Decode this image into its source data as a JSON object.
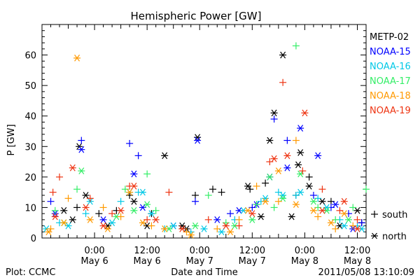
{
  "chart_data": {
    "type": "scatter",
    "title": "Hemispheric Power [GW]",
    "ylabel": "P [GW]",
    "xlabel": "Date and Time",
    "ylim": [
      0,
      70
    ],
    "yticks": [
      0,
      10,
      20,
      30,
      40,
      50,
      60
    ],
    "xlim": [
      "2011-05-05T12:00",
      "2011-05-08T14:00"
    ],
    "xticks": [
      {
        "time": "2011-05-06T00:00",
        "label": "0:00",
        "date": "May 6"
      },
      {
        "time": "2011-05-06T12:00",
        "label": "12:00",
        "date": "May 6"
      },
      {
        "time": "2011-05-07T00:00",
        "label": "0:00",
        "date": "May 7"
      },
      {
        "time": "2011-05-07T12:00",
        "label": "12:00",
        "date": "May 7"
      },
      {
        "time": "2011-05-08T00:00",
        "label": "0:00",
        "date": "May 8"
      },
      {
        "time": "2011-05-08T12:00",
        "label": "12:00",
        "date": "May 8"
      }
    ],
    "marker_legend": [
      {
        "label": "south",
        "symbol": "+"
      },
      {
        "label": "north",
        "symbol": "*"
      }
    ],
    "series": [
      {
        "name": "METP-02",
        "color": "#000000",
        "south": [
          [
            "2011-05-05T20:00",
            10
          ],
          [
            "2011-05-06T01:00",
            8
          ],
          [
            "2011-05-06T05:00",
            9
          ],
          [
            "2011-05-06T08:00",
            14
          ],
          [
            "2011-05-06T13:00",
            8
          ],
          [
            "2011-05-06T23:00",
            14
          ],
          [
            "2011-05-07T03:00",
            16
          ],
          [
            "2011-05-07T05:00",
            15
          ],
          [
            "2011-05-07T11:30",
            16
          ],
          [
            "2011-05-07T15:00",
            18
          ],
          [
            "2011-05-07T22:00",
            14
          ],
          [
            "2011-05-08T01:00",
            20
          ],
          [
            "2011-05-08T06:00",
            12
          ],
          [
            "2011-05-08T13:00",
            5
          ]
        ],
        "north": [
          [
            "2011-05-05T17:00",
            9
          ],
          [
            "2011-05-05T19:00",
            6
          ],
          [
            "2011-05-05T20:30",
            30
          ],
          [
            "2011-05-05T22:00",
            14
          ],
          [
            "2011-05-06T03:00",
            4
          ],
          [
            "2011-05-06T09:00",
            12
          ],
          [
            "2011-05-06T16:00",
            27
          ],
          [
            "2011-05-06T21:00",
            3
          ],
          [
            "2011-05-06T23:30",
            33
          ],
          [
            "2011-05-07T11:00",
            17
          ],
          [
            "2011-05-07T14:00",
            7
          ],
          [
            "2011-05-07T16:00",
            32
          ],
          [
            "2011-05-07T17:00",
            41
          ],
          [
            "2011-05-07T19:00",
            60
          ],
          [
            "2011-05-07T21:00",
            7
          ],
          [
            "2011-05-07T23:00",
            28
          ],
          [
            "2011-05-07T22:30",
            24
          ],
          [
            "2011-05-08T01:00",
            17
          ],
          [
            "2011-05-08T04:00",
            12
          ],
          [
            "2011-05-08T08:00",
            4
          ],
          [
            "2011-05-08T12:00",
            9
          ],
          [
            "2011-05-06T12:00",
            4
          ],
          [
            "2011-05-06T20:00",
            4
          ]
        ]
      },
      {
        "name": "NOAA-15",
        "color": "#0000ff",
        "south": [
          [
            "2011-05-05T14:00",
            12
          ],
          [
            "2011-05-05T21:00",
            32
          ],
          [
            "2011-05-06T08:00",
            31
          ],
          [
            "2011-05-06T10:00",
            27
          ],
          [
            "2011-05-06T23:00",
            12
          ],
          [
            "2011-05-07T07:00",
            8
          ],
          [
            "2011-05-07T12:00",
            10
          ],
          [
            "2011-05-07T17:00",
            39
          ],
          [
            "2011-05-07T20:00",
            32
          ],
          [
            "2011-05-08T02:00",
            14
          ],
          [
            "2011-05-08T06:00",
            10
          ],
          [
            "2011-05-08T10:00",
            8
          ],
          [
            "2011-05-08T13:00",
            5
          ]
        ],
        "north": [
          [
            "2011-05-05T15:00",
            8
          ],
          [
            "2011-05-05T21:00",
            29
          ],
          [
            "2011-05-06T02:00",
            6
          ],
          [
            "2011-05-06T09:00",
            21
          ],
          [
            "2011-05-06T11:00",
            10
          ],
          [
            "2011-05-06T18:00",
            4
          ],
          [
            "2011-05-06T23:30",
            32
          ],
          [
            "2011-05-07T04:00",
            6
          ],
          [
            "2011-05-07T09:00",
            9
          ],
          [
            "2011-05-07T13:00",
            11
          ],
          [
            "2011-05-07T16:00",
            20
          ],
          [
            "2011-05-07T20:00",
            23
          ],
          [
            "2011-05-07T23:00",
            36
          ],
          [
            "2011-05-08T03:00",
            27
          ],
          [
            "2011-05-08T07:00",
            11
          ],
          [
            "2011-05-08T11:00",
            3
          ]
        ]
      },
      {
        "name": "NOAA-16",
        "color": "#00c8e6",
        "south": [
          [
            "2011-05-05T16:00",
            5
          ],
          [
            "2011-05-05T22:00",
            8
          ],
          [
            "2011-05-06T06:00",
            12
          ],
          [
            "2011-05-06T10:00",
            15
          ],
          [
            "2011-05-06T16:00",
            3
          ],
          [
            "2011-05-06T22:00",
            2
          ],
          [
            "2011-05-07T08:00",
            6
          ],
          [
            "2011-05-07T14:00",
            12
          ],
          [
            "2011-05-07T18:00",
            15
          ],
          [
            "2011-05-07T22:00",
            14
          ],
          [
            "2011-05-08T03:00",
            13
          ],
          [
            "2011-05-08T08:00",
            6
          ],
          [
            "2011-05-08T12:00",
            4
          ]
        ],
        "north": [
          [
            "2011-05-05T13:00",
            3
          ],
          [
            "2011-05-05T18:00",
            4
          ],
          [
            "2011-05-05T23:00",
            12
          ],
          [
            "2011-05-06T04:00",
            5
          ],
          [
            "2011-05-06T08:00",
            15
          ],
          [
            "2011-05-06T11:00",
            15
          ],
          [
            "2011-05-06T13:00",
            8
          ],
          [
            "2011-05-06T18:00",
            4
          ],
          [
            "2011-05-07T01:00",
            3
          ],
          [
            "2011-05-07T05:00",
            2
          ],
          [
            "2011-05-07T10:00",
            9
          ],
          [
            "2011-05-07T15:00",
            13
          ],
          [
            "2011-05-07T19:00",
            14
          ],
          [
            "2011-05-07T23:00",
            15
          ],
          [
            "2011-05-08T05:00",
            10
          ],
          [
            "2011-05-08T09:00",
            4
          ],
          [
            "2011-05-08T13:00",
            3
          ]
        ]
      },
      {
        "name": "NOAA-17",
        "color": "#33ee66",
        "south": [
          [
            "2011-05-05T15:00",
            9
          ],
          [
            "2011-05-05T20:00",
            16
          ],
          [
            "2011-05-06T07:00",
            16
          ],
          [
            "2011-05-06T12:00",
            21
          ],
          [
            "2011-05-06T14:00",
            9
          ],
          [
            "2011-05-07T02:00",
            14
          ],
          [
            "2011-05-07T06:00",
            5
          ],
          [
            "2011-05-07T13:00",
            11
          ],
          [
            "2011-05-07T17:00",
            10
          ],
          [
            "2011-05-07T22:00",
            63
          ],
          [
            "2011-05-08T03:00",
            10
          ],
          [
            "2011-05-08T07:00",
            6
          ],
          [
            "2011-05-08T11:00",
            10
          ],
          [
            "2011-05-08T14:00",
            16
          ]
        ],
        "north": [
          [
            "2011-05-05T17:00",
            5
          ],
          [
            "2011-05-05T21:00",
            22
          ],
          [
            "2011-05-06T05:00",
            7
          ],
          [
            "2011-05-06T09:00",
            9
          ],
          [
            "2011-05-06T12:00",
            11
          ],
          [
            "2011-05-06T17:00",
            3
          ],
          [
            "2011-05-06T23:00",
            4
          ],
          [
            "2011-05-07T08:00",
            4
          ],
          [
            "2011-05-07T12:00",
            6
          ],
          [
            "2011-05-07T16:00",
            20
          ],
          [
            "2011-05-07T19:00",
            13
          ],
          [
            "2011-05-07T23:00",
            21
          ],
          [
            "2011-05-08T02:00",
            12
          ],
          [
            "2011-05-08T05:00",
            9
          ],
          [
            "2011-05-08T10:00",
            6
          ]
        ]
      },
      {
        "name": "NOAA-18",
        "color": "#ff9900",
        "south": [
          [
            "2011-05-05T14:00",
            3
          ],
          [
            "2011-05-05T18:00",
            13
          ],
          [
            "2011-05-06T02:00",
            10
          ],
          [
            "2011-05-06T06:00",
            7
          ],
          [
            "2011-05-06T13:00",
            4
          ],
          [
            "2011-05-06T21:00",
            2
          ],
          [
            "2011-05-07T04:00",
            3
          ],
          [
            "2011-05-07T09:00",
            6
          ],
          [
            "2011-05-07T13:00",
            17
          ],
          [
            "2011-05-07T18:00",
            12
          ],
          [
            "2011-05-07T22:00",
            32
          ],
          [
            "2011-05-08T03:00",
            7
          ],
          [
            "2011-05-08T07:00",
            3
          ],
          [
            "2011-05-08T11:00",
            4
          ]
        ],
        "north": [
          [
            "2011-05-05T13:30",
            2
          ],
          [
            "2011-05-05T17:00",
            5
          ],
          [
            "2011-05-05T20:00",
            59
          ],
          [
            "2011-05-05T23:00",
            6
          ],
          [
            "2011-05-06T03:00",
            3
          ],
          [
            "2011-05-06T08:00",
            15
          ],
          [
            "2011-05-06T11:00",
            5
          ],
          [
            "2011-05-06T16:00",
            3
          ],
          [
            "2011-05-06T22:00",
            1
          ],
          [
            "2011-05-07T07:00",
            2
          ],
          [
            "2011-05-07T11:00",
            9
          ],
          [
            "2011-05-07T15:00",
            12
          ],
          [
            "2011-05-07T18:00",
            22
          ],
          [
            "2011-05-07T22:00",
            11
          ],
          [
            "2011-05-08T02:00",
            9
          ],
          [
            "2011-05-08T06:00",
            5
          ],
          [
            "2011-05-08T09:00",
            8
          ]
        ]
      },
      {
        "name": "NOAA-19",
        "color": "#ee3311",
        "south": [
          [
            "2011-05-05T14:30",
            15
          ],
          [
            "2011-05-05T16:00",
            20
          ],
          [
            "2011-05-05T23:00",
            13
          ],
          [
            "2011-05-06T04:00",
            8
          ],
          [
            "2011-05-06T08:00",
            17
          ],
          [
            "2011-05-06T12:00",
            6
          ],
          [
            "2011-05-06T17:00",
            15
          ],
          [
            "2011-05-07T02:00",
            6
          ],
          [
            "2011-05-07T09:00",
            4
          ],
          [
            "2011-05-07T16:00",
            25
          ],
          [
            "2011-05-07T19:00",
            51
          ],
          [
            "2011-05-07T23:30",
            22
          ],
          [
            "2011-05-08T04:00",
            16
          ],
          [
            "2011-05-08T08:00",
            9
          ],
          [
            "2011-05-08T12:00",
            6
          ]
        ],
        "north": [
          [
            "2011-05-05T15:00",
            7
          ],
          [
            "2011-05-05T19:00",
            23
          ],
          [
            "2011-05-05T22:00",
            10
          ],
          [
            "2011-05-06T02:00",
            4
          ],
          [
            "2011-05-06T06:00",
            9
          ],
          [
            "2011-05-06T09:00",
            17
          ],
          [
            "2011-05-06T14:00",
            6
          ],
          [
            "2011-05-06T20:00",
            3
          ],
          [
            "2011-05-07T06:00",
            4
          ],
          [
            "2011-05-07T12:00",
            8
          ],
          [
            "2011-05-07T17:00",
            26
          ],
          [
            "2011-05-07T20:00",
            27
          ],
          [
            "2011-05-08T00:00",
            41
          ],
          [
            "2011-05-08T04:00",
            9
          ],
          [
            "2011-05-08T09:00",
            12
          ],
          [
            "2011-05-08T12:00",
            3
          ]
        ]
      }
    ]
  },
  "footer": {
    "left": "Plot: CCMC",
    "right": "2011/05/08 13:10:09"
  }
}
